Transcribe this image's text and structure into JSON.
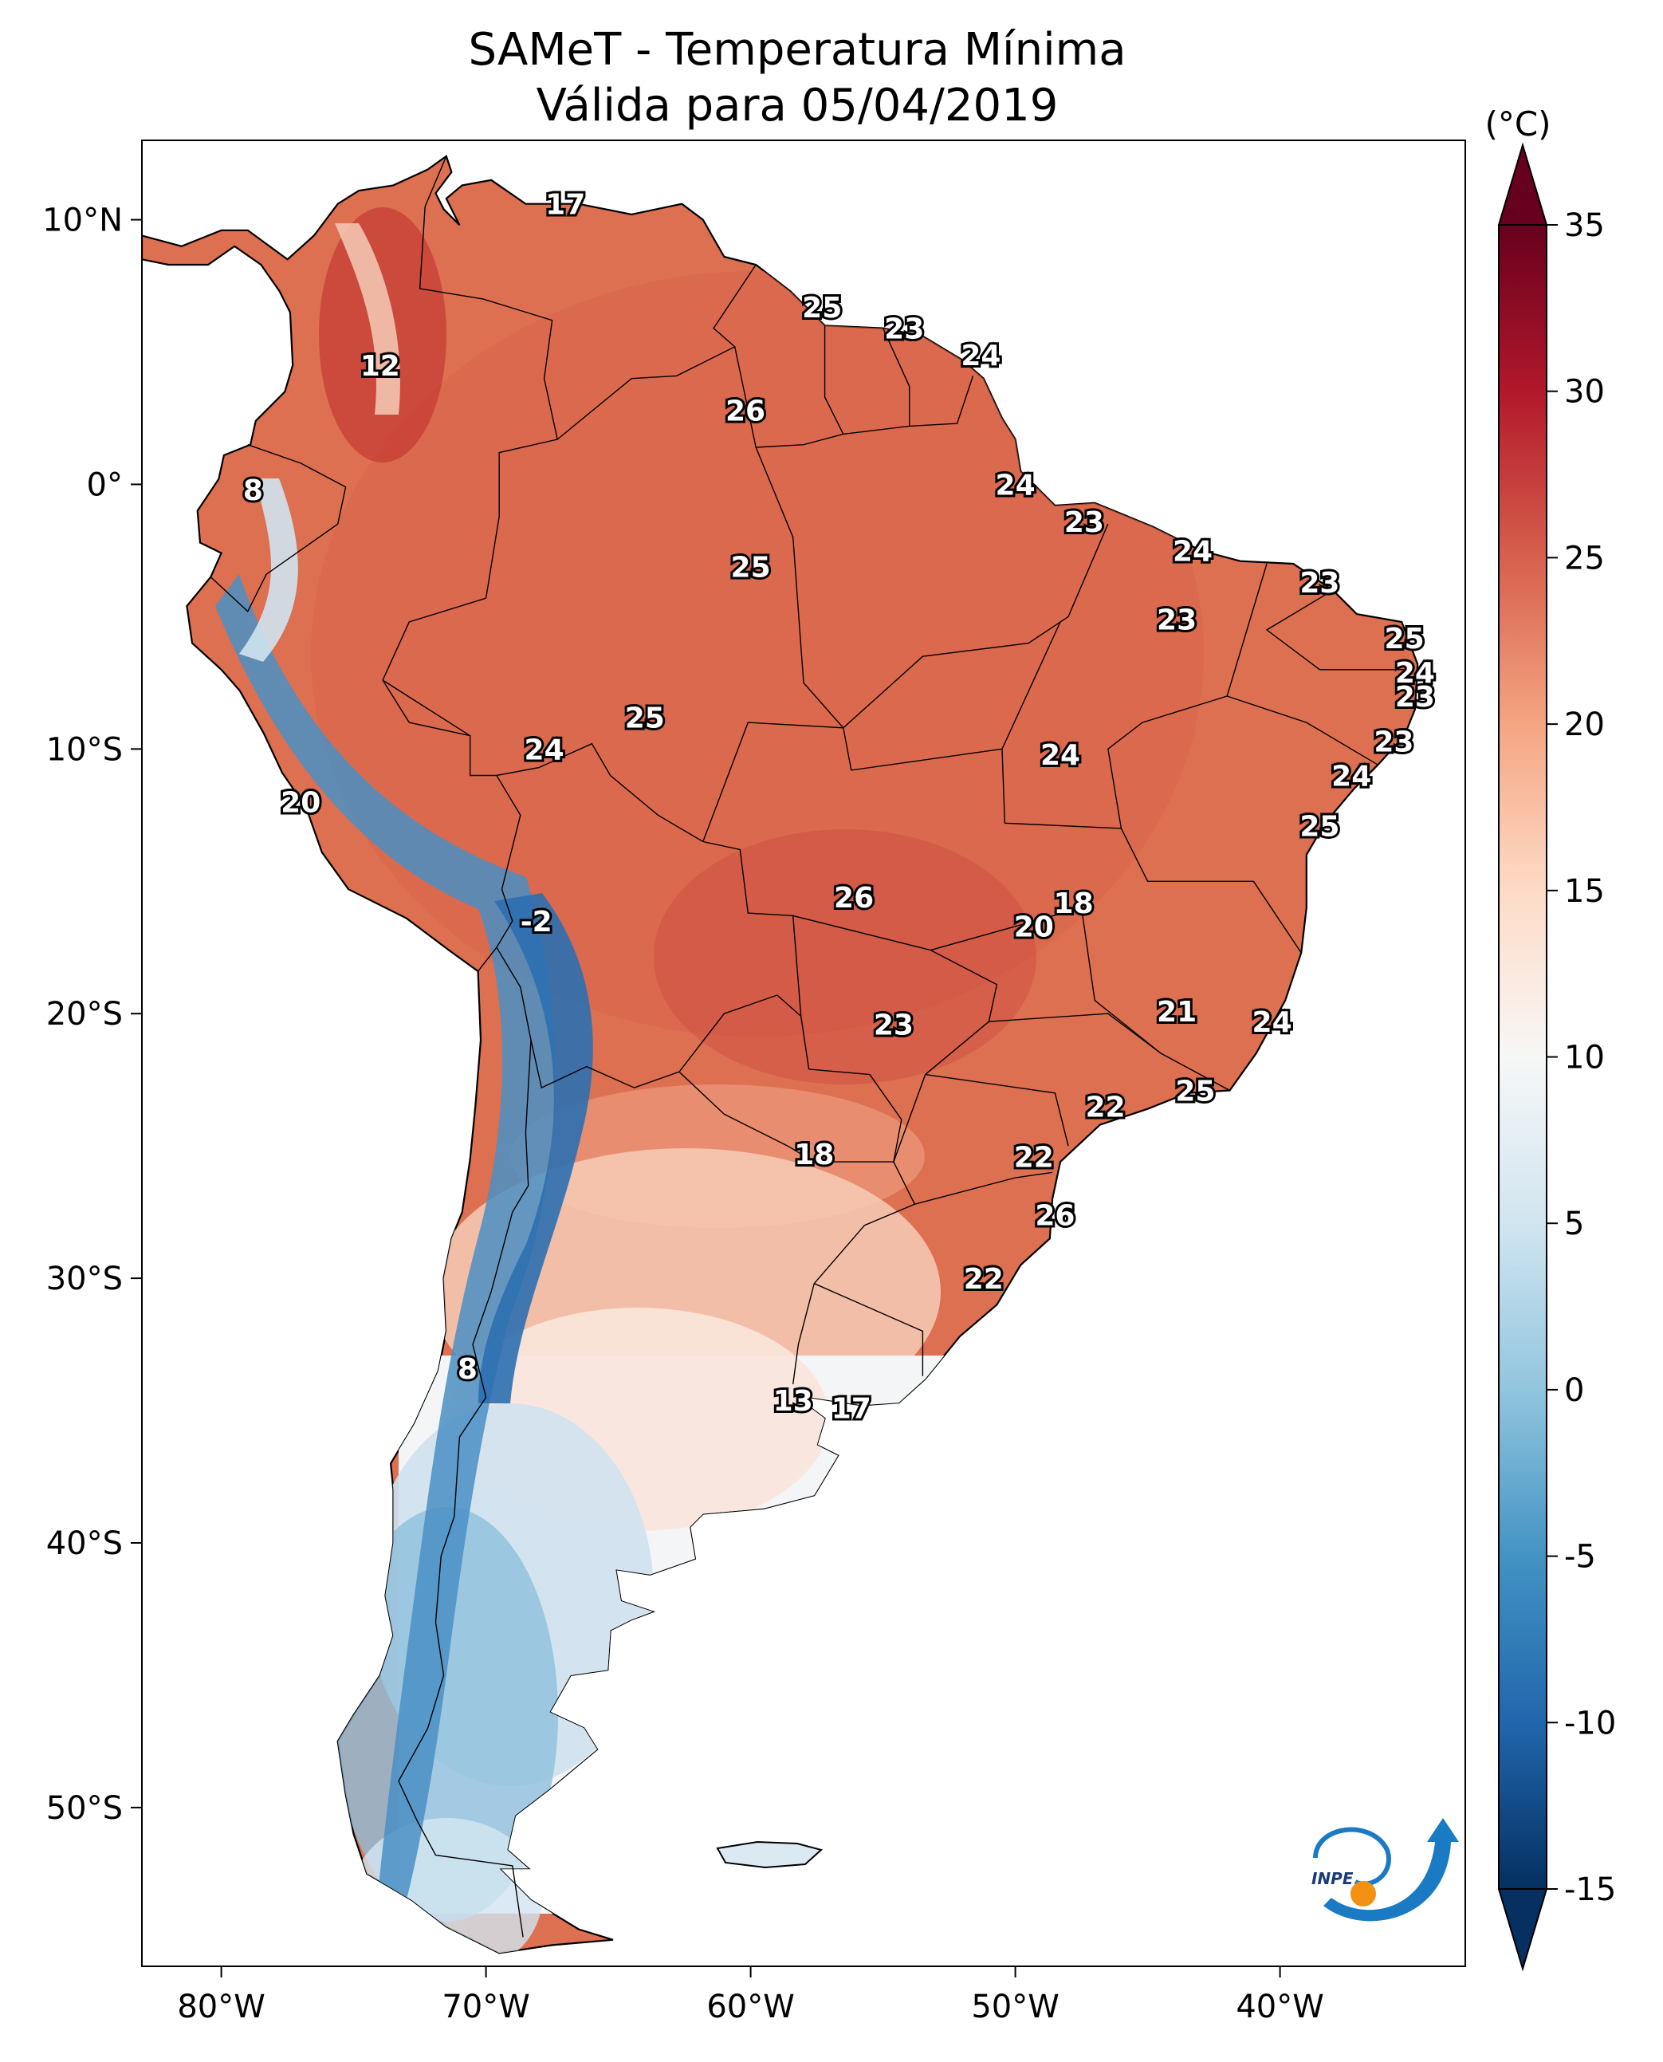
{
  "title": {
    "line1": "SAMeT - Temperatura Mínima",
    "line2": "Válida para 05/04/2019"
  },
  "map": {
    "lon_range": [
      -83,
      -33
    ],
    "lat_range": [
      -56,
      13
    ],
    "lon_ticks": [
      "80°W",
      "70°W",
      "60°W",
      "50°W",
      "40°W"
    ],
    "lat_ticks": [
      "10°N",
      "0°",
      "10°S",
      "20°S",
      "30°S",
      "40°S",
      "50°S"
    ],
    "labels": [
      {
        "value": "17",
        "lon": -67,
        "lat": 10.6
      },
      {
        "value": "25",
        "lon": -57.3,
        "lat": 6.7
      },
      {
        "value": "23",
        "lon": -54.2,
        "lat": 5.9
      },
      {
        "value": "24",
        "lon": -51.3,
        "lat": 4.9
      },
      {
        "value": "12",
        "lon": -74,
        "lat": 4.5
      },
      {
        "value": "26",
        "lon": -60.2,
        "lat": 2.8
      },
      {
        "value": "8",
        "lon": -78.8,
        "lat": -0.2
      },
      {
        "value": "24",
        "lon": -50,
        "lat": 0
      },
      {
        "value": "23",
        "lon": -47.4,
        "lat": -1.4
      },
      {
        "value": "24",
        "lon": -43.3,
        "lat": -2.5
      },
      {
        "value": "25",
        "lon": -60,
        "lat": -3.1
      },
      {
        "value": "23",
        "lon": -38.5,
        "lat": -3.7
      },
      {
        "value": "23",
        "lon": -43.9,
        "lat": -5.1
      },
      {
        "value": "25",
        "lon": -35.3,
        "lat": -5.8
      },
      {
        "value": "24",
        "lon": -34.9,
        "lat": -7.1
      },
      {
        "value": "23",
        "lon": -34.9,
        "lat": -8
      },
      {
        "value": "25",
        "lon": -64,
        "lat": -8.8
      },
      {
        "value": "23",
        "lon": -35.7,
        "lat": -9.7
      },
      {
        "value": "24",
        "lon": -67.8,
        "lat": -10
      },
      {
        "value": "24",
        "lon": -48.3,
        "lat": -10.2
      },
      {
        "value": "24",
        "lon": -37.3,
        "lat": -11
      },
      {
        "value": "20",
        "lon": -77,
        "lat": -12
      },
      {
        "value": "25",
        "lon": -38.5,
        "lat": -12.9
      },
      {
        "value": "26",
        "lon": -56.1,
        "lat": -15.6
      },
      {
        "value": "18",
        "lon": -47.8,
        "lat": -15.8
      },
      {
        "value": "20",
        "lon": -49.3,
        "lat": -16.7
      },
      {
        "value": "-2",
        "lon": -68.1,
        "lat": -16.5
      },
      {
        "value": "21",
        "lon": -43.9,
        "lat": -19.9
      },
      {
        "value": "24",
        "lon": -40.3,
        "lat": -20.3
      },
      {
        "value": "23",
        "lon": -54.6,
        "lat": -20.4
      },
      {
        "value": "25",
        "lon": -43.2,
        "lat": -22.9
      },
      {
        "value": "22",
        "lon": -46.6,
        "lat": -23.5
      },
      {
        "value": "18",
        "lon": -57.6,
        "lat": -25.3
      },
      {
        "value": "22",
        "lon": -49.3,
        "lat": -25.4
      },
      {
        "value": "26",
        "lon": -48.5,
        "lat": -27.6
      },
      {
        "value": "22",
        "lon": -51.2,
        "lat": -30.0
      },
      {
        "value": "8",
        "lon": -70.7,
        "lat": -33.4
      },
      {
        "value": "13",
        "lon": -58.4,
        "lat": -34.6
      },
      {
        "value": "17",
        "lon": -56.2,
        "lat": -34.9
      }
    ]
  },
  "colorbar": {
    "units": "(°C)",
    "min": -15,
    "max": 35,
    "ticks": [
      "35",
      "30",
      "25",
      "20",
      "15",
      "10",
      "5",
      "0",
      "-5",
      "-10",
      "-15"
    ],
    "colors": [
      "#053061",
      "#2166ac",
      "#4393c3",
      "#92c5de",
      "#d1e5f0",
      "#f7f7f7",
      "#fddbc7",
      "#f4a582",
      "#d6604d",
      "#b2182b",
      "#67001f"
    ]
  },
  "logo": {
    "text": "INPE",
    "colors": {
      "blue": "#1a7bc4",
      "orange": "#f29111"
    }
  }
}
